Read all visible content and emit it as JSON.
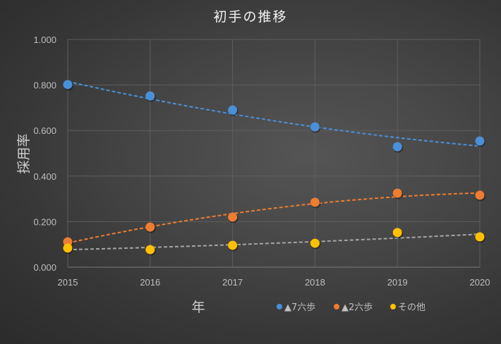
{
  "chart_data": {
    "type": "scatter",
    "title": "初手の推移",
    "xlabel": "年",
    "ylabel": "採用率",
    "x": [
      2015,
      2016,
      2017,
      2018,
      2019,
      2020
    ],
    "x_tick_labels": [
      "2015",
      "2016",
      "2017",
      "2018",
      "2019",
      "2020"
    ],
    "xlim": [
      2015,
      2020
    ],
    "ylim": [
      0,
      1
    ],
    "y_tick_labels": [
      "0.000",
      "0.200",
      "0.400",
      "0.600",
      "0.800",
      "1.000"
    ],
    "y_ticks": [
      0,
      0.2,
      0.4,
      0.6,
      0.8,
      1.0
    ],
    "grid": true,
    "legend_position": "bottom-right",
    "trendlines": "dashed polynomial",
    "series": [
      {
        "name": "▲7六歩",
        "color": "#4a90d9",
        "values": [
          0.802,
          0.752,
          0.69,
          0.616,
          0.529,
          0.554
        ]
      },
      {
        "name": "▲2六歩",
        "color": "#ed7d31",
        "values": [
          0.111,
          0.176,
          0.22,
          0.285,
          0.325,
          0.316
        ]
      },
      {
        "name": "その他",
        "color": "#ffc000",
        "trend_color": "#a5a5a5",
        "values": [
          0.084,
          0.077,
          0.096,
          0.105,
          0.152,
          0.133
        ]
      }
    ]
  }
}
